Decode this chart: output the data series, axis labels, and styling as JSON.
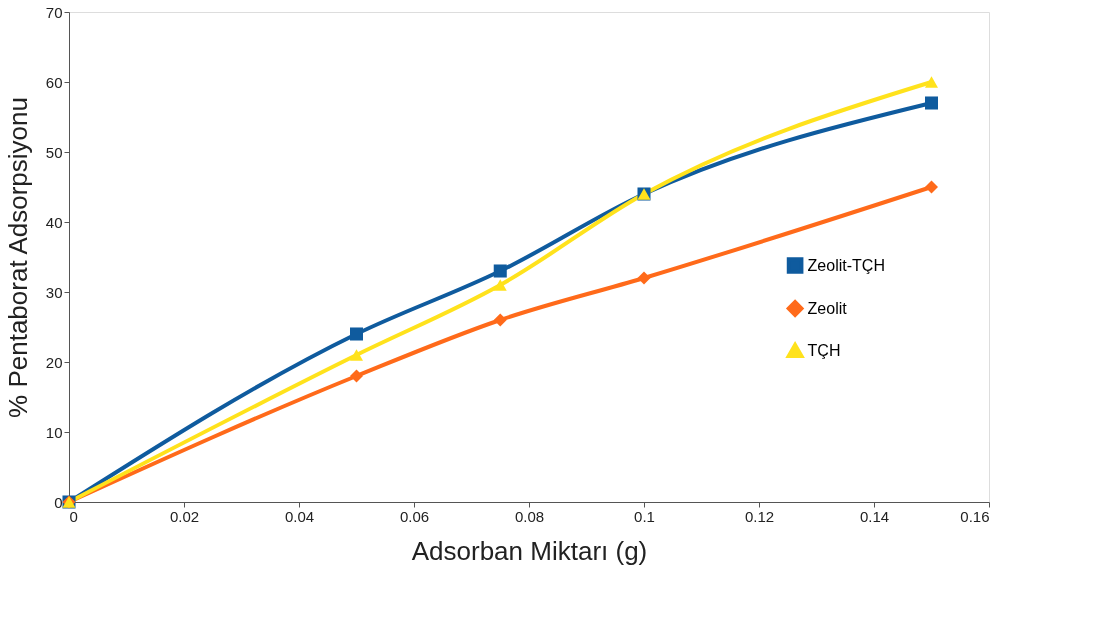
{
  "chart_data": {
    "type": "line",
    "xlabel": "Adsorban Miktarı (g)",
    "ylabel": "% Pentaborat Adsorpsiyonu",
    "x": [
      0,
      0.05,
      0.075,
      0.1,
      0.15
    ],
    "series": [
      {
        "name": "Zeolit-TÇH",
        "color": "#0f5b9e",
        "marker": "square",
        "values": [
          0,
          24,
          33,
          44,
          57
        ]
      },
      {
        "name": "Zeolit",
        "color": "#ff6a1a",
        "marker": "diamond",
        "values": [
          0,
          18,
          26,
          32,
          45
        ]
      },
      {
        "name": "TÇH",
        "color": "#ffe21c",
        "marker": "triangle",
        "values": [
          0,
          21,
          31,
          44,
          60
        ]
      }
    ],
    "xlim": [
      0,
      0.16
    ],
    "xticks": [
      0,
      0.02,
      0.04,
      0.06,
      0.08,
      0.1,
      0.12,
      0.14,
      0.16
    ],
    "ylim": [
      0,
      70
    ],
    "yticks": [
      0,
      10,
      20,
      30,
      40,
      50,
      60,
      70
    ],
    "grid": false,
    "legend": "right",
    "line_style": "solid"
  }
}
